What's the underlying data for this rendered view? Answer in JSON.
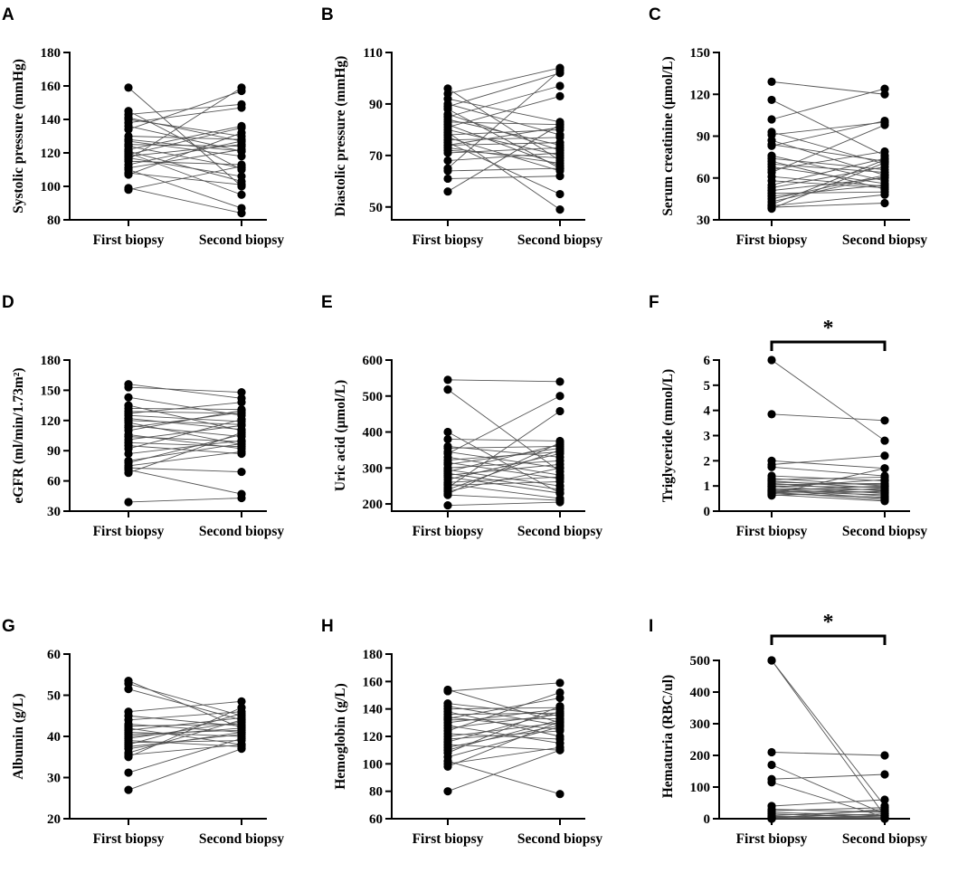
{
  "chart_data": [
    {
      "panel": "A",
      "type": "scatter",
      "subtype": "paired-lines",
      "ylabel": "Systolic pressure (mmHg)",
      "categories": [
        "First biopsy",
        "Second biopsy"
      ],
      "ylim": [
        80,
        180
      ],
      "yticks": [
        80,
        100,
        120,
        140,
        160,
        180
      ],
      "pairs": [
        [
          159,
          100
        ],
        [
          145,
          110
        ],
        [
          143,
          149
        ],
        [
          141,
          127
        ],
        [
          140,
          130
        ],
        [
          138,
          147
        ],
        [
          136,
          121
        ],
        [
          134,
          157
        ],
        [
          130,
          128
        ],
        [
          128,
          121
        ],
        [
          127,
          118
        ],
        [
          125,
          124
        ],
        [
          124,
          111
        ],
        [
          122,
          136
        ],
        [
          121,
          103
        ],
        [
          120,
          95
        ],
        [
          119,
          135
        ],
        [
          118,
          125
        ],
        [
          117,
          106
        ],
        [
          116,
          159
        ],
        [
          115,
          113
        ],
        [
          113,
          127
        ],
        [
          111,
          122
        ],
        [
          110,
          87
        ],
        [
          108,
          101
        ],
        [
          107,
          132
        ],
        [
          99,
          84
        ],
        [
          98,
          112
        ]
      ]
    },
    {
      "panel": "B",
      "type": "scatter",
      "subtype": "paired-lines",
      "ylabel": "Diastolic pressure (mmHg)",
      "categories": [
        "First biopsy",
        "Second biopsy"
      ],
      "ylim": [
        45,
        110
      ],
      "yticks": [
        50,
        70,
        90,
        110
      ],
      "pairs": [
        [
          96,
          68
        ],
        [
          94,
          104
        ],
        [
          92,
          83
        ],
        [
          90,
          78
        ],
        [
          89,
          102
        ],
        [
          88,
          65
        ],
        [
          86,
          72
        ],
        [
          85,
          97
        ],
        [
          84,
          74
        ],
        [
          83,
          82
        ],
        [
          82,
          66
        ],
        [
          81,
          93
        ],
        [
          80,
          70
        ],
        [
          79,
          49
        ],
        [
          78,
          80
        ],
        [
          77,
          64
        ],
        [
          76,
          77
        ],
        [
          75,
          55
        ],
        [
          74,
          75
        ],
        [
          74,
          81
        ],
        [
          73,
          67
        ],
        [
          72,
          69
        ],
        [
          71,
          73
        ],
        [
          68,
          71
        ],
        [
          65,
          103
        ],
        [
          64,
          65
        ],
        [
          61,
          62
        ],
        [
          56,
          82
        ]
      ]
    },
    {
      "panel": "C",
      "type": "scatter",
      "subtype": "paired-lines",
      "ylabel": "Serum creatinine (μmol/L)",
      "categories": [
        "First biopsy",
        "Second biopsy"
      ],
      "ylim": [
        30,
        150
      ],
      "yticks": [
        30,
        60,
        90,
        120,
        150
      ],
      "pairs": [
        [
          129,
          120
        ],
        [
          116,
          76
        ],
        [
          102,
          124
        ],
        [
          93,
          70
        ],
        [
          91,
          100
        ],
        [
          87,
          62
        ],
        [
          84,
          72
        ],
        [
          83,
          101
        ],
        [
          76,
          58
        ],
        [
          74,
          66
        ],
        [
          72,
          52
        ],
        [
          70,
          64
        ],
        [
          68,
          56
        ],
        [
          66,
          79
        ],
        [
          64,
          98
        ],
        [
          61,
          54
        ],
        [
          58,
          53
        ],
        [
          55,
          74
        ],
        [
          53,
          68
        ],
        [
          51,
          60
        ],
        [
          49,
          50
        ],
        [
          47,
          55
        ],
        [
          45,
          62
        ],
        [
          43,
          61
        ],
        [
          41,
          73
        ],
        [
          40,
          48
        ],
        [
          39,
          42
        ],
        [
          38,
          71
        ]
      ]
    },
    {
      "panel": "D",
      "type": "scatter",
      "subtype": "paired-lines",
      "ylabel": "eGFR (ml/min/1.73m²)",
      "categories": [
        "First biopsy",
        "Second biopsy"
      ],
      "ylim": [
        30,
        180
      ],
      "yticks": [
        30,
        60,
        90,
        120,
        150,
        180
      ],
      "pairs": [
        [
          156,
          142
        ],
        [
          153,
          148
        ],
        [
          143,
          125
        ],
        [
          135,
          110
        ],
        [
          132,
          131
        ],
        [
          129,
          127
        ],
        [
          127,
          138
        ],
        [
          125,
          119
        ],
        [
          122,
          111
        ],
        [
          120,
          116
        ],
        [
          118,
          96
        ],
        [
          115,
          104
        ],
        [
          113,
          128
        ],
        [
          110,
          130
        ],
        [
          106,
          92
        ],
        [
          104,
          99
        ],
        [
          101,
          115
        ],
        [
          98,
          94
        ],
        [
          95,
          87
        ],
        [
          92,
          121
        ],
        [
          87,
          100
        ],
        [
          80,
          97
        ],
        [
          78,
          106
        ],
        [
          75,
          89
        ],
        [
          73,
          69
        ],
        [
          71,
          47
        ],
        [
          68,
          108
        ],
        [
          39,
          43
        ]
      ]
    },
    {
      "panel": "E",
      "type": "scatter",
      "subtype": "paired-lines",
      "ylabel": "Uric acid (μmol/L)",
      "categories": [
        "First biopsy",
        "Second biopsy"
      ],
      "ylim": [
        180,
        600
      ],
      "yticks": [
        200,
        300,
        400,
        500,
        600
      ],
      "pairs": [
        [
          545,
          540
        ],
        [
          518,
          290
        ],
        [
          400,
          230
        ],
        [
          380,
          375
        ],
        [
          360,
          330
        ],
        [
          355,
          360
        ],
        [
          345,
          300
        ],
        [
          340,
          500
        ],
        [
          330,
          280
        ],
        [
          322,
          345
        ],
        [
          315,
          270
        ],
        [
          310,
          355
        ],
        [
          300,
          320
        ],
        [
          295,
          250
        ],
        [
          290,
          365
        ],
        [
          285,
          240
        ],
        [
          280,
          310
        ],
        [
          275,
          230
        ],
        [
          268,
          340
        ],
        [
          260,
          275
        ],
        [
          255,
          215
        ],
        [
          252,
          262
        ],
        [
          245,
          458
        ],
        [
          240,
          350
        ],
        [
          235,
          300
        ],
        [
          228,
          370
        ],
        [
          225,
          210
        ],
        [
          196,
          205
        ]
      ]
    },
    {
      "panel": "F",
      "type": "scatter",
      "subtype": "paired-lines",
      "ylabel": "Triglyceride (mmol/L)",
      "categories": [
        "First biopsy",
        "Second biopsy"
      ],
      "ylim": [
        0,
        6
      ],
      "yticks": [
        0,
        1,
        2,
        3,
        4,
        5,
        6
      ],
      "significance": "*",
      "pairs": [
        [
          6.0,
          2.8
        ],
        [
          3.85,
          3.6
        ],
        [
          2.0,
          1.7
        ],
        [
          1.85,
          2.2
        ],
        [
          1.75,
          1.4
        ],
        [
          1.4,
          1.2
        ],
        [
          1.3,
          1.0
        ],
        [
          1.25,
          1.35
        ],
        [
          1.2,
          0.9
        ],
        [
          1.15,
          1.05
        ],
        [
          1.1,
          0.8
        ],
        [
          1.05,
          1.1
        ],
        [
          1.0,
          0.95
        ],
        [
          0.98,
          0.7
        ],
        [
          0.95,
          1.25
        ],
        [
          0.9,
          0.6
        ],
        [
          0.88,
          0.85
        ],
        [
          0.85,
          0.5
        ],
        [
          0.82,
          1.0
        ],
        [
          0.8,
          0.75
        ],
        [
          0.78,
          0.65
        ],
        [
          0.75,
          0.45
        ],
        [
          0.72,
          0.9
        ],
        [
          0.7,
          0.55
        ],
        [
          0.68,
          1.7
        ],
        [
          0.65,
          0.4
        ],
        [
          0.62,
          0.8
        ]
      ]
    },
    {
      "panel": "G",
      "type": "scatter",
      "subtype": "paired-lines",
      "ylabel": "Albumin (g/L)",
      "categories": [
        "First biopsy",
        "Second biopsy"
      ],
      "ylim": [
        20,
        60
      ],
      "yticks": [
        20,
        30,
        40,
        50,
        60
      ],
      "pairs": [
        [
          53.5,
          42
        ],
        [
          52.8,
          45
        ],
        [
          51.5,
          44
        ],
        [
          46,
          48.5
        ],
        [
          45,
          42.5
        ],
        [
          44,
          46
        ],
        [
          43,
          41
        ],
        [
          42.5,
          43
        ],
        [
          42,
          38
        ],
        [
          41.5,
          44.5
        ],
        [
          41,
          40
        ],
        [
          40.5,
          41.5
        ],
        [
          40,
          42
        ],
        [
          39.5,
          43.5
        ],
        [
          39,
          37.5
        ],
        [
          38.5,
          39
        ],
        [
          38,
          45.5
        ],
        [
          37.5,
          40.5
        ],
        [
          37,
          41
        ],
        [
          36,
          44
        ],
        [
          35.5,
          38
        ],
        [
          35,
          47
        ],
        [
          31.2,
          39.5
        ],
        [
          27,
          37
        ]
      ]
    },
    {
      "panel": "H",
      "type": "scatter",
      "subtype": "paired-lines",
      "ylabel": "Hemoglobin (g/L)",
      "categories": [
        "First biopsy",
        "Second biopsy"
      ],
      "ylim": [
        60,
        180
      ],
      "yticks": [
        60,
        80,
        100,
        120,
        140,
        160,
        180
      ],
      "pairs": [
        [
          154,
          130
        ],
        [
          153,
          159
        ],
        [
          144,
          135
        ],
        [
          142,
          128
        ],
        [
          140,
          141
        ],
        [
          138,
          120
        ],
        [
          136,
          137
        ],
        [
          134,
          125
        ],
        [
          133,
          148
        ],
        [
          132,
          133
        ],
        [
          130,
          140
        ],
        [
          128,
          115
        ],
        [
          126,
          136
        ],
        [
          124,
          152
        ],
        [
          122,
          118
        ],
        [
          120,
          130
        ],
        [
          118,
          124
        ],
        [
          116,
          138
        ],
        [
          114,
          110
        ],
        [
          112,
          128
        ],
        [
          110,
          132
        ],
        [
          108,
          142
        ],
        [
          105,
          127
        ],
        [
          102,
          78
        ],
        [
          100,
          112
        ],
        [
          98,
          131
        ],
        [
          80,
          110
        ]
      ]
    },
    {
      "panel": "I",
      "type": "scatter",
      "subtype": "paired-lines",
      "ylabel": "Hematuria (RBC/ul)",
      "categories": [
        "First biopsy",
        "Second biopsy"
      ],
      "ylim": [
        0,
        520
      ],
      "yticks": [
        0,
        100,
        200,
        300,
        400,
        500
      ],
      "significance": "*",
      "pairs": [
        [
          500,
          10
        ],
        [
          500,
          40
        ],
        [
          210,
          200
        ],
        [
          170,
          15
        ],
        [
          125,
          140
        ],
        [
          115,
          5
        ],
        [
          40,
          60
        ],
        [
          30,
          20
        ],
        [
          25,
          35
        ],
        [
          20,
          10
        ],
        [
          15,
          5
        ],
        [
          10,
          25
        ],
        [
          8,
          0
        ],
        [
          5,
          15
        ],
        [
          3,
          5
        ],
        [
          2,
          30
        ],
        [
          1,
          2
        ],
        [
          0,
          0
        ],
        [
          0,
          10
        ]
      ]
    }
  ]
}
